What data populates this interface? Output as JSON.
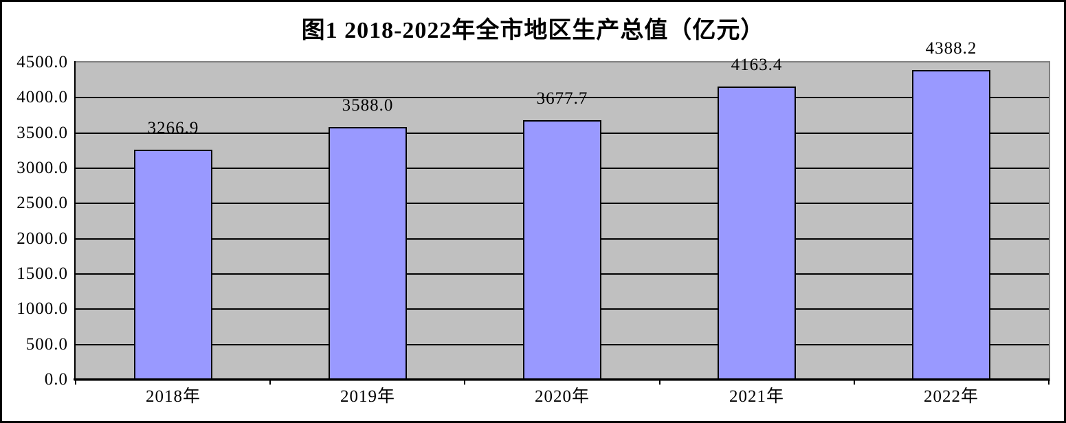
{
  "figure": {
    "title": "图1 2018-2022年全市地区生产总值（亿元）"
  },
  "chart_data": {
    "type": "bar",
    "title": "图1 2018-2022年全市地区生产总值（亿元）",
    "categories": [
      "2018年",
      "2019年",
      "2020年",
      "2021年",
      "2022年"
    ],
    "values": [
      3266.9,
      3588.0,
      3677.7,
      4163.4,
      4388.2
    ],
    "data_labels": [
      "3266.9",
      "3588.0",
      "3677.7",
      "4163.4",
      "4388.2"
    ],
    "xlabel": "",
    "ylabel": "",
    "ylim": [
      0,
      4500
    ],
    "ytick_step": 500,
    "ytick_labels": [
      "0.0",
      "500.0",
      "1000.0",
      "1500.0",
      "2000.0",
      "2500.0",
      "3000.0",
      "3500.0",
      "4000.0",
      "4500.0"
    ],
    "grid": true,
    "legend_position": "none",
    "colors": {
      "bar_fill": "#9999ff",
      "bar_border": "#000000",
      "plot_background": "#c0c0c0",
      "plot_border": "#808080",
      "gridline": "#000000",
      "axis_line": "#000000",
      "text": "#000000",
      "background": "#ffffff",
      "outer_border": "#000000"
    }
  }
}
